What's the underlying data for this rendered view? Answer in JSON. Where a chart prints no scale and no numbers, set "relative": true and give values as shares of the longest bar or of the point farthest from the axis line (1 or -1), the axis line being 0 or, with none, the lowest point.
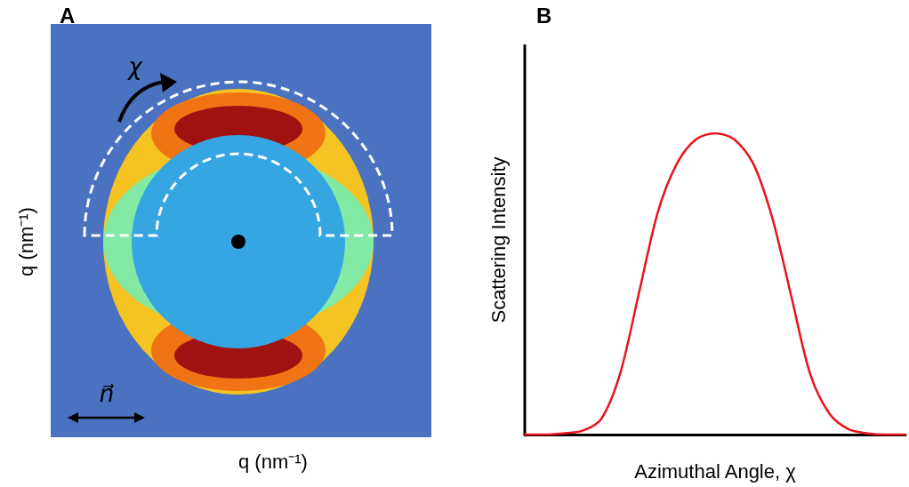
{
  "chart_data": [
    {
      "type": "other",
      "title": "A",
      "xlabel": "q (nm⁻¹)",
      "ylabel": "q (nm⁻¹)",
      "annotations": [
        "χ",
        "n⃗"
      ]
    },
    {
      "type": "line",
      "title": "B",
      "xlabel": "Azimuthal Angle, χ",
      "ylabel": "Scattering Intensity",
      "relative": true,
      "marker": "none",
      "line_style": "solid",
      "categories": [
        null,
        null,
        null,
        null,
        null,
        null,
        null,
        null,
        null,
        null,
        null,
        null,
        null,
        null,
        null,
        null,
        null,
        null,
        null,
        null,
        null
      ],
      "series": [
        {
          "color": "#e8141a",
          "values": [
            0,
            0,
            0.004,
            0.012,
            0.05,
            0.2,
            0.47,
            0.74,
            0.9,
            0.98,
            1,
            0.98,
            0.9,
            0.72,
            0.46,
            0.2,
            0.07,
            0.018,
            0.004,
            0,
            0
          ]
        }
      ]
    }
  ]
}
